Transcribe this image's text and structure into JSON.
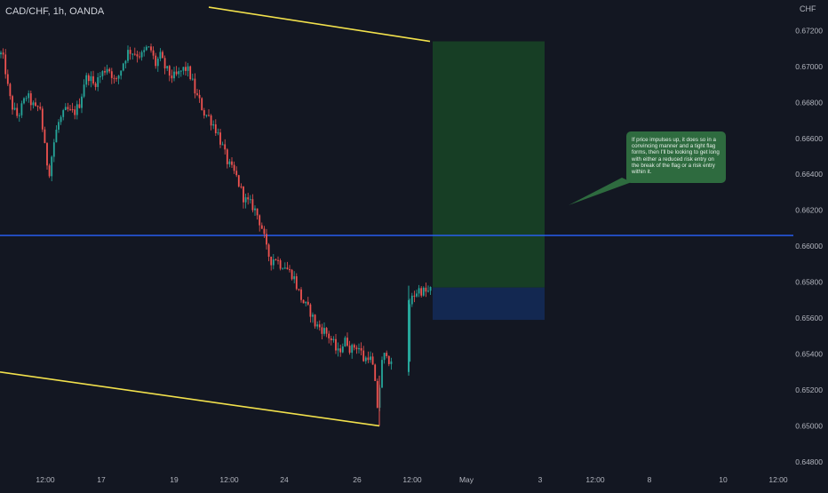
{
  "header": {
    "symbol_title": "CAD/CHF, 1h, OANDA",
    "currency_label": "CHF"
  },
  "annotation": {
    "note": "If price impulses up, it does so in a convincing manner and a tight flag forms, then I'll be looking to get long with either a reduced risk entry on the break of the flag or a risk entry within it."
  },
  "colors": {
    "background": "#131722",
    "up_candle": "#26a69a",
    "down_candle": "#ef5350",
    "trendline": "#f2e14c",
    "horizontal_level": "#2962ff",
    "target_zone": "#1b5e28",
    "stop_zone": "#142a56",
    "note_bubble": "#2e6b3f",
    "axis_text": "#b2b5be"
  },
  "chart_data": {
    "type": "candlestick",
    "title": "CAD/CHF, 1h, OANDA",
    "y_axis": {
      "currency": "CHF",
      "ylim": [
        0.6477,
        0.6737
      ],
      "ticks": [
        "0.67200",
        "0.67000",
        "0.66800",
        "0.66600",
        "0.66400",
        "0.66200",
        "0.66000",
        "0.65800",
        "0.65600",
        "0.65400",
        "0.65200",
        "0.65000",
        "0.64800"
      ]
    },
    "x_axis": {
      "ticks": [
        "12:00",
        "17",
        "19",
        "12:00",
        "24",
        "26",
        "12:00",
        "May",
        "3",
        "12:00",
        "8",
        "10",
        "12:00"
      ]
    },
    "grid": false,
    "price_path": [
      [
        0,
        0.6708
      ],
      [
        5,
        0.6702
      ],
      [
        10,
        0.6684
      ],
      [
        15,
        0.6676
      ],
      [
        20,
        0.6672
      ],
      [
        25,
        0.6678
      ],
      [
        30,
        0.6684
      ],
      [
        35,
        0.668
      ],
      [
        40,
        0.6676
      ],
      [
        45,
        0.6678
      ],
      [
        50,
        0.6656
      ],
      [
        55,
        0.664
      ],
      [
        60,
        0.6656
      ],
      [
        65,
        0.6668
      ],
      [
        70,
        0.6672
      ],
      [
        75,
        0.6676
      ],
      [
        80,
        0.6674
      ],
      [
        85,
        0.6675
      ],
      [
        90,
        0.668
      ],
      [
        95,
        0.6692
      ],
      [
        100,
        0.6695
      ],
      [
        105,
        0.669
      ],
      [
        110,
        0.6693
      ],
      [
        115,
        0.6696
      ],
      [
        120,
        0.67
      ],
      [
        125,
        0.6697
      ],
      [
        130,
        0.669
      ],
      [
        135,
        0.6697
      ],
      [
        140,
        0.6704
      ],
      [
        145,
        0.6709
      ],
      [
        150,
        0.6708
      ],
      [
        155,
        0.6707
      ],
      [
        160,
        0.6706
      ],
      [
        165,
        0.671
      ],
      [
        170,
        0.6709
      ],
      [
        175,
        0.6701
      ],
      [
        180,
        0.6706
      ],
      [
        185,
        0.67
      ],
      [
        190,
        0.6696
      ],
      [
        195,
        0.6694
      ],
      [
        200,
        0.6695
      ],
      [
        205,
        0.6698
      ],
      [
        210,
        0.6699
      ],
      [
        215,
        0.6694
      ],
      [
        220,
        0.6685
      ],
      [
        225,
        0.668
      ],
      [
        230,
        0.6674
      ],
      [
        235,
        0.6672
      ],
      [
        240,
        0.6668
      ],
      [
        245,
        0.6663
      ],
      [
        250,
        0.6656
      ],
      [
        255,
        0.6648
      ],
      [
        260,
        0.6643
      ],
      [
        265,
        0.664
      ],
      [
        270,
        0.6633
      ],
      [
        275,
        0.6626
      ],
      [
        280,
        0.6624
      ],
      [
        285,
        0.6622
      ],
      [
        290,
        0.6617
      ],
      [
        295,
        0.661
      ],
      [
        300,
        0.6598
      ],
      [
        305,
        0.6592
      ],
      [
        310,
        0.6594
      ],
      [
        315,
        0.659
      ],
      [
        320,
        0.659
      ],
      [
        325,
        0.6586
      ],
      [
        330,
        0.6584
      ],
      [
        335,
        0.6576
      ],
      [
        340,
        0.657
      ],
      [
        345,
        0.6566
      ],
      [
        350,
        0.6563
      ],
      [
        355,
        0.6556
      ],
      [
        360,
        0.6555
      ],
      [
        365,
        0.6553
      ],
      [
        370,
        0.655
      ],
      [
        375,
        0.6546
      ],
      [
        380,
        0.654
      ],
      [
        385,
        0.6545
      ],
      [
        390,
        0.6548
      ],
      [
        395,
        0.6542
      ],
      [
        400,
        0.6545
      ],
      [
        405,
        0.6543
      ],
      [
        410,
        0.6536
      ],
      [
        415,
        0.654
      ],
      [
        420,
        0.6532
      ],
      [
        425,
        0.651
      ],
      [
        430,
        0.6535
      ],
      [
        435,
        0.6542
      ],
      [
        440,
        0.6533
      ],
      [
        458,
        0.6534
      ],
      [
        461,
        0.6568
      ],
      [
        466,
        0.6573
      ],
      [
        471,
        0.6576
      ],
      [
        476,
        0.6575
      ],
      [
        481,
        0.6574
      ],
      [
        486,
        0.6576
      ]
    ],
    "annotations": {
      "upper_trendline": [
        0.6733,
        0.6714
      ],
      "lower_trendline": [
        0.653,
        0.65
      ],
      "horizontal_level": 0.6606,
      "long_position": {
        "entry": 0.6577,
        "target": 0.6714,
        "stop": 0.6559
      }
    }
  }
}
